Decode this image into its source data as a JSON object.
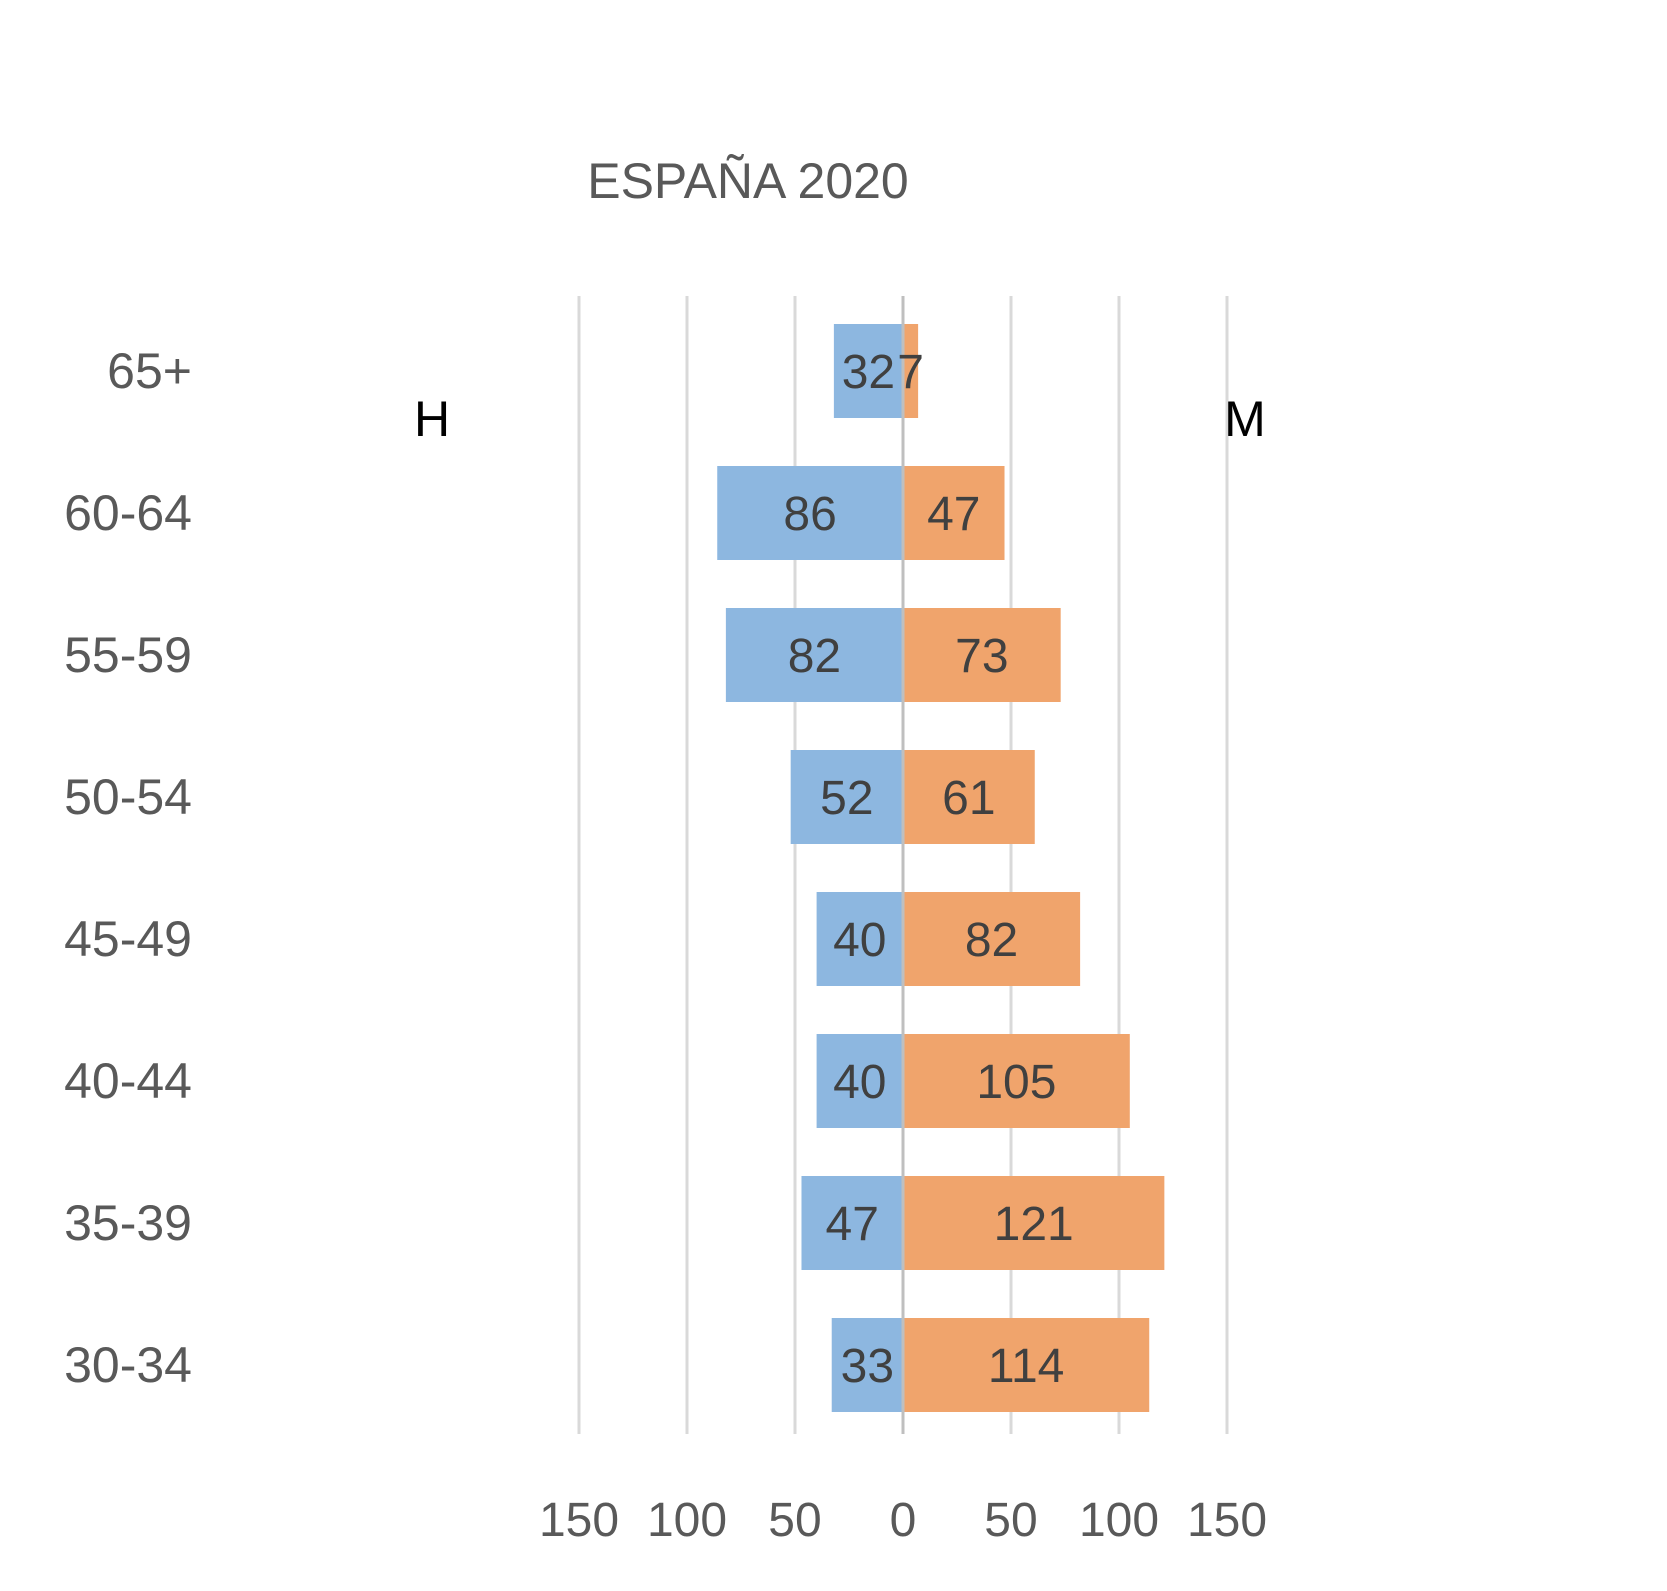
{
  "chart_data": {
    "type": "bar",
    "orientation": "horizontal",
    "title": "ESPAÑA 2020",
    "categories": [
      "65+",
      "60-64",
      "55-59",
      "50-54",
      "45-49",
      "40-44",
      "35-39",
      "30-34"
    ],
    "series": [
      {
        "name": "H",
        "color": "#8DB7E0",
        "values": [
          32,
          86,
          82,
          52,
          40,
          40,
          47,
          33
        ]
      },
      {
        "name": "M",
        "color": "#F0A46C",
        "values": [
          7,
          47,
          73,
          61,
          82,
          105,
          121,
          114
        ]
      }
    ],
    "xticks": [
      "150",
      "100",
      "50",
      "0",
      "50",
      "100",
      "150"
    ],
    "xlim": [
      -150,
      150
    ],
    "grid": true,
    "xlabel": "",
    "ylabel": ""
  }
}
